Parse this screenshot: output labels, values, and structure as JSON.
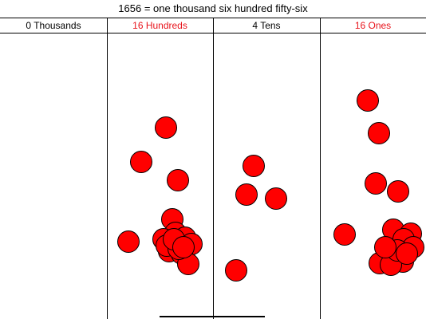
{
  "title": "1656 = one thousand six hundred fifty-six",
  "columns": [
    {
      "label": "0 Thousands",
      "color": "#000000"
    },
    {
      "label": "16 Hundreds",
      "color": "#e8141c"
    },
    {
      "label": "4 Tens",
      "color": "#000000"
    },
    {
      "label": "16 Ones",
      "color": "#e8141c"
    }
  ],
  "chip_color": "#ff0000",
  "counts": {
    "thousands": 0,
    "hundreds": 16,
    "tens": 4,
    "ones": 16
  }
}
